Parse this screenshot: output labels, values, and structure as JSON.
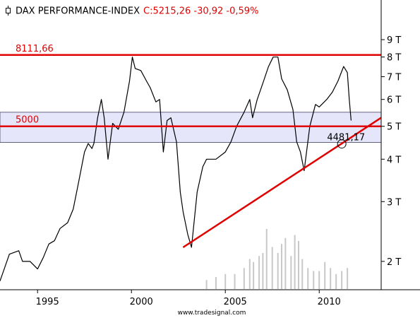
{
  "header": {
    "title": "DAX PERFORMANCE-INDEX",
    "quote": "C:5215,26 -30,92 -0,59%",
    "icon": "candlestick-icon"
  },
  "footer": {
    "source": "www.tradesignal.com"
  },
  "colors": {
    "price": "#000000",
    "level_line": "#e00000",
    "band_fill": "#e6e6fb",
    "band_border": "#404060",
    "volume": "#c8c8c8",
    "axis": "#000000"
  },
  "chart_data": {
    "type": "line",
    "title": "DAX PERFORMANCE-INDEX",
    "scale": "log",
    "xlim": [
      1993.0,
      2013.3
    ],
    "ylim": [
      1650,
      10200
    ],
    "x_ticks": [
      1995,
      2000,
      2005,
      2010
    ],
    "x_tick_labels": [
      "1995",
      "2000",
      "2005",
      "2010"
    ],
    "y_ticks": [
      2000,
      3000,
      4000,
      5000,
      6000,
      7000,
      8000,
      9000
    ],
    "y_tick_labels": [
      "2 T",
      "3 T",
      "4 T",
      "5 T",
      "6 T",
      "7 T",
      "8 T",
      "9 T"
    ],
    "grid": false,
    "legend": "none",
    "series": [
      {
        "x": [
          1993.0,
          1993.5,
          1994.0,
          1994.2,
          1994.6,
          1995.0,
          1995.3,
          1995.6,
          1995.9,
          1996.2,
          1996.6,
          1996.9,
          1997.2,
          1997.5,
          1997.7,
          1997.9,
          1998.0,
          1998.2,
          1998.4,
          1998.55,
          1998.75,
          1999.0,
          1999.3,
          1999.6,
          1999.9,
          2000.05,
          2000.2,
          2000.5,
          2000.8,
          2001.0,
          2001.3,
          2001.5,
          2001.7,
          2001.9,
          2002.1,
          2002.4,
          2002.6,
          2002.75,
          2003.0,
          2003.2,
          2003.5,
          2003.8,
          2004.0,
          2004.5,
          2005.0,
          2005.3,
          2005.6,
          2006.0,
          2006.3,
          2006.45,
          2006.7,
          2007.0,
          2007.3,
          2007.55,
          2007.8,
          2008.0,
          2008.3,
          2008.6,
          2008.8,
          2009.0,
          2009.2,
          2009.5,
          2009.8,
          2010.0,
          2010.4,
          2010.7,
          2011.0,
          2011.3,
          2011.5,
          2011.6,
          2011.7
        ],
        "values": [
          1750,
          2100,
          2150,
          2000,
          2000,
          1900,
          2050,
          2250,
          2300,
          2500,
          2600,
          2850,
          3450,
          4200,
          4450,
          4300,
          4450,
          5300,
          6000,
          5300,
          4000,
          5100,
          4900,
          5500,
          6800,
          8000,
          7400,
          7300,
          6800,
          6500,
          5900,
          6000,
          4200,
          5200,
          5300,
          4500,
          3200,
          2800,
          2400,
          2200,
          3200,
          3800,
          4000,
          4000,
          4200,
          4500,
          5000,
          5500,
          6000,
          5300,
          6000,
          6700,
          7500,
          8000,
          8000,
          6900,
          6400,
          5600,
          4500,
          4200,
          3700,
          5000,
          5800,
          5700,
          6000,
          6300,
          6800,
          7500,
          7200,
          6000,
          5200
        ]
      },
      {
        "name": "volume",
        "x": [
          2004.0,
          2004.5,
          2005.0,
          2005.5,
          2006.0,
          2006.3,
          2006.5,
          2006.8,
          2007.0,
          2007.2,
          2007.5,
          2007.8,
          2008.0,
          2008.2,
          2008.5,
          2008.7,
          2008.9,
          2009.1,
          2009.4,
          2009.7,
          2010.0,
          2010.3,
          2010.6,
          2010.9,
          2011.2,
          2011.5
        ],
        "values": [
          0.15,
          0.2,
          0.25,
          0.25,
          0.35,
          0.5,
          0.45,
          0.55,
          0.6,
          1.0,
          0.7,
          0.6,
          0.75,
          0.85,
          0.55,
          0.9,
          0.8,
          0.5,
          0.35,
          0.3,
          0.3,
          0.45,
          0.35,
          0.25,
          0.3,
          0.35
        ]
      }
    ],
    "annotations": {
      "band": {
        "low": 4481.17,
        "high": 5500
      },
      "levels": [
        {
          "value": 8111.66,
          "label": "8111,66"
        },
        {
          "value": 5000,
          "label": "5000"
        }
      ],
      "trendline": {
        "x": [
          2002.75,
          2013.3
        ],
        "y": [
          2200,
          5300
        ]
      },
      "marker": {
        "x": 2011.2,
        "y": 4481.17,
        "label": "4481,17"
      }
    }
  }
}
